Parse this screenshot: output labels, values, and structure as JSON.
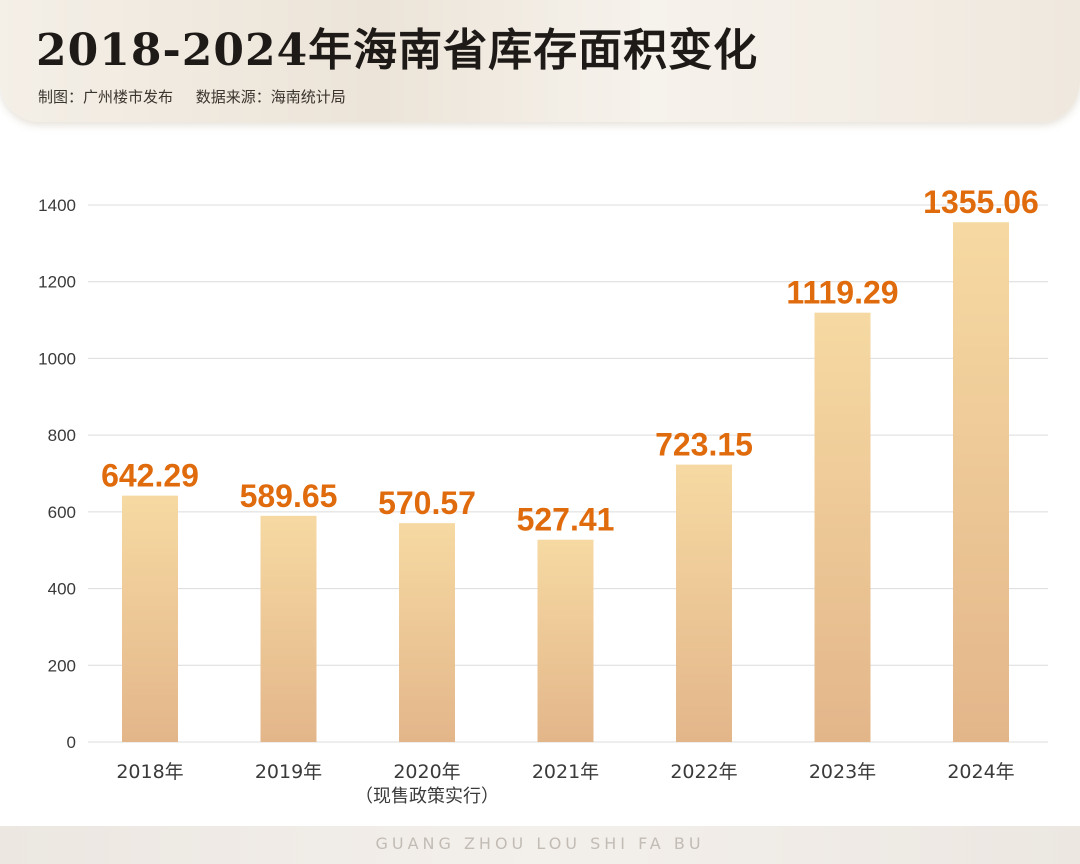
{
  "header": {
    "title": "2018-2024年海南省库存面积变化",
    "credit": "制图：广州楼市发布",
    "source": "数据来源：海南统计局"
  },
  "footer": {
    "watermark": "GUANG ZHOU LOU SHI FA BU"
  },
  "colors": {
    "bar_top": "#f6d9a2",
    "bar_bottom": "#e3b68a",
    "value_label": "#e06b0c",
    "axis_text": "#3a3a3a",
    "grid": "#dcdcdc"
  },
  "chart_data": {
    "type": "bar",
    "categories": [
      "2018年",
      "2019年",
      "2020年",
      "2021年",
      "2022年",
      "2023年",
      "2024年"
    ],
    "category_notes": [
      "",
      "",
      "（现售政策实行）",
      "",
      "",
      "",
      ""
    ],
    "values": [
      642.29,
      589.65,
      570.57,
      527.41,
      723.15,
      1119.29,
      1355.06
    ],
    "value_labels": [
      "642.29",
      "589.65",
      "570.57",
      "527.41",
      "723.15",
      "1119.29",
      "1355.06"
    ],
    "yticks": [
      "0",
      "200",
      "400",
      "600",
      "800",
      "1000",
      "1200",
      "1400"
    ],
    "ylim": [
      0,
      1400
    ],
    "grid": true,
    "title": "2018-2024年海南省库存面积变化",
    "xlabel": "",
    "ylabel": ""
  }
}
